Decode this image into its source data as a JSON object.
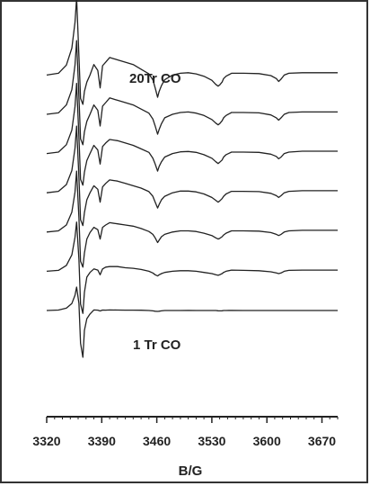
{
  "chart_data": {
    "type": "line",
    "xlabel": "B/G",
    "ylabel": "",
    "xlim": [
      3320,
      3690
    ],
    "xticks": [
      3320,
      3390,
      3460,
      3530,
      3600,
      3670
    ],
    "grid": false,
    "annotations": {
      "top": "20Tr CO",
      "bottom": "1 Tr CO"
    },
    "y_axis": "arbitrary offset stacked spectra",
    "line_color": "#222222",
    "spectra_order": "bottom to top: 1 Tr CO to 20Tr CO",
    "num_spectra": 7,
    "series": [
      {
        "x": [
          3320,
          3335,
          3345,
          3352,
          3356,
          3358,
          3361,
          3363,
          3366,
          3368,
          3371,
          3375,
          3380,
          3385,
          3388,
          3391,
          3395,
          3400,
          3410,
          3420,
          3430,
          3440,
          3450,
          3455,
          3458,
          3461,
          3463,
          3466,
          3470,
          3480,
          3490,
          3500,
          3510,
          3520,
          3530,
          3535,
          3538,
          3540,
          3543,
          3545,
          3548,
          3555,
          3570,
          3590,
          3605,
          3612,
          3615,
          3618,
          3622,
          3628,
          3645,
          3690
        ],
        "y": [
          0.0,
          0.004,
          0.02,
          0.06,
          0.13,
          0.2,
          0.06,
          -0.28,
          -0.4,
          -0.17,
          -0.07,
          -0.03,
          0.005,
          0.003,
          -0.004,
          0.004,
          0.003,
          0.005,
          0.004,
          0.003,
          0.003,
          0.002,
          0.0,
          -0.003,
          -0.006,
          -0.008,
          -0.006,
          -0.003,
          0.0,
          0.0,
          0.0,
          0.001,
          0.0,
          0.0,
          0.0,
          0.0,
          -0.002,
          -0.003,
          -0.002,
          0.0,
          0.0,
          0.001,
          0.0,
          0.0,
          0.0,
          0.0,
          0.0,
          0.0,
          0.0,
          0.0,
          0.0,
          0.0
        ]
      },
      {
        "x": [
          3320,
          3335,
          3345,
          3352,
          3356,
          3358,
          3361,
          3363,
          3366,
          3368,
          3371,
          3375,
          3380,
          3385,
          3388,
          3391,
          3395,
          3400,
          3410,
          3420,
          3430,
          3440,
          3450,
          3455,
          3458,
          3461,
          3463,
          3466,
          3470,
          3480,
          3490,
          3500,
          3510,
          3520,
          3530,
          3535,
          3538,
          3540,
          3543,
          3545,
          3548,
          3555,
          3570,
          3590,
          3605,
          3612,
          3615,
          3618,
          3622,
          3628,
          3645,
          3690
        ],
        "y": [
          0.0,
          0.008,
          0.05,
          0.14,
          0.29,
          0.42,
          0.1,
          -0.28,
          -0.36,
          -0.18,
          -0.05,
          -0.01,
          0.02,
          0.01,
          -0.03,
          0.02,
          0.035,
          0.04,
          0.04,
          0.03,
          0.025,
          0.015,
          0.0,
          -0.015,
          -0.03,
          -0.04,
          -0.03,
          -0.02,
          -0.01,
          0.0,
          0.005,
          0.005,
          0.0,
          -0.01,
          -0.02,
          -0.03,
          -0.035,
          -0.03,
          -0.02,
          -0.01,
          0.0,
          0.01,
          0.008,
          0.005,
          -0.005,
          -0.015,
          -0.02,
          -0.015,
          0.0,
          0.008,
          0.01,
          0.01
        ]
      },
      {
        "x": [
          3320,
          3335,
          3345,
          3352,
          3356,
          3358,
          3361,
          3363,
          3366,
          3368,
          3371,
          3375,
          3380,
          3385,
          3388,
          3391,
          3395,
          3400,
          3410,
          3420,
          3430,
          3440,
          3450,
          3455,
          3458,
          3461,
          3463,
          3466,
          3470,
          3480,
          3490,
          3500,
          3510,
          3520,
          3530,
          3535,
          3538,
          3540,
          3543,
          3545,
          3548,
          3555,
          3570,
          3590,
          3605,
          3612,
          3615,
          3618,
          3622,
          3628,
          3645,
          3690
        ],
        "y": [
          0.0,
          0.01,
          0.06,
          0.17,
          0.34,
          0.52,
          0.12,
          -0.25,
          -0.3,
          -0.18,
          -0.06,
          -0.005,
          0.04,
          0.02,
          -0.06,
          0.04,
          0.06,
          0.08,
          0.07,
          0.06,
          0.05,
          0.03,
          0.005,
          -0.02,
          -0.05,
          -0.09,
          -0.07,
          -0.04,
          -0.02,
          0.0,
          0.01,
          0.01,
          0.005,
          -0.01,
          -0.03,
          -0.05,
          -0.06,
          -0.055,
          -0.04,
          -0.025,
          -0.01,
          0.01,
          0.01,
          0.008,
          -0.005,
          -0.02,
          -0.03,
          -0.02,
          0.0,
          0.01,
          0.015,
          0.015
        ]
      },
      {
        "x": [
          3320,
          3335,
          3345,
          3352,
          3356,
          3358,
          3361,
          3363,
          3366,
          3368,
          3371,
          3375,
          3380,
          3385,
          3388,
          3391,
          3395,
          3400,
          3410,
          3420,
          3430,
          3440,
          3450,
          3455,
          3458,
          3461,
          3463,
          3466,
          3470,
          3480,
          3490,
          3500,
          3510,
          3520,
          3530,
          3535,
          3538,
          3540,
          3543,
          3545,
          3548,
          3555,
          3570,
          3590,
          3605,
          3612,
          3615,
          3618,
          3622,
          3628,
          3645,
          3690
        ],
        "y": [
          0.0,
          0.012,
          0.07,
          0.19,
          0.38,
          0.57,
          0.13,
          -0.23,
          -0.28,
          -0.17,
          -0.06,
          0.0,
          0.06,
          0.03,
          -0.08,
          0.05,
          0.08,
          0.11,
          0.1,
          0.08,
          0.06,
          0.04,
          0.01,
          -0.03,
          -0.08,
          -0.13,
          -0.1,
          -0.06,
          -0.03,
          0.0,
          0.015,
          0.015,
          0.008,
          -0.01,
          -0.04,
          -0.065,
          -0.08,
          -0.07,
          -0.05,
          -0.03,
          -0.01,
          0.012,
          0.012,
          0.01,
          -0.005,
          -0.025,
          -0.04,
          -0.025,
          0.0,
          0.012,
          0.018,
          0.018
        ]
      },
      {
        "x": [
          3320,
          3335,
          3345,
          3352,
          3356,
          3358,
          3361,
          3363,
          3366,
          3368,
          3371,
          3375,
          3380,
          3385,
          3388,
          3391,
          3395,
          3400,
          3410,
          3420,
          3430,
          3440,
          3450,
          3455,
          3458,
          3461,
          3463,
          3466,
          3470,
          3480,
          3490,
          3500,
          3510,
          3520,
          3530,
          3535,
          3538,
          3540,
          3543,
          3545,
          3548,
          3555,
          3570,
          3590,
          3605,
          3612,
          3615,
          3618,
          3622,
          3628,
          3645,
          3690
        ],
        "y": [
          0.0,
          0.012,
          0.075,
          0.2,
          0.4,
          0.6,
          0.14,
          -0.22,
          -0.27,
          -0.16,
          -0.06,
          0.0,
          0.07,
          0.03,
          -0.09,
          0.06,
          0.09,
          0.12,
          0.11,
          0.09,
          0.07,
          0.04,
          0.01,
          -0.04,
          -0.09,
          -0.15,
          -0.11,
          -0.07,
          -0.03,
          0.0,
          0.015,
          0.018,
          0.01,
          -0.01,
          -0.04,
          -0.07,
          -0.085,
          -0.075,
          -0.055,
          -0.03,
          -0.01,
          0.012,
          0.012,
          0.01,
          -0.005,
          -0.025,
          -0.045,
          -0.03,
          0.0,
          0.012,
          0.02,
          0.02
        ]
      },
      {
        "x": [
          3320,
          3335,
          3345,
          3352,
          3356,
          3358,
          3361,
          3363,
          3366,
          3368,
          3371,
          3375,
          3380,
          3385,
          3388,
          3391,
          3395,
          3400,
          3410,
          3420,
          3430,
          3440,
          3450,
          3455,
          3458,
          3461,
          3463,
          3466,
          3470,
          3480,
          3490,
          3500,
          3510,
          3520,
          3530,
          3535,
          3538,
          3540,
          3543,
          3545,
          3548,
          3555,
          3570,
          3590,
          3605,
          3612,
          3615,
          3618,
          3622,
          3628,
          3645,
          3690
        ],
        "y": [
          0.0,
          0.012,
          0.08,
          0.21,
          0.42,
          0.63,
          0.15,
          -0.21,
          -0.26,
          -0.15,
          -0.06,
          0.0,
          0.08,
          0.035,
          -0.1,
          0.07,
          0.1,
          0.14,
          0.12,
          0.1,
          0.08,
          0.045,
          0.01,
          -0.04,
          -0.1,
          -0.17,
          -0.13,
          -0.08,
          -0.03,
          0.0,
          0.015,
          0.02,
          0.01,
          -0.01,
          -0.045,
          -0.075,
          -0.09,
          -0.08,
          -0.055,
          -0.03,
          -0.01,
          0.015,
          0.015,
          0.012,
          -0.005,
          -0.03,
          -0.05,
          -0.03,
          0.0,
          0.015,
          0.02,
          0.02
        ]
      },
      {
        "x": [
          3320,
          3335,
          3345,
          3352,
          3356,
          3358,
          3361,
          3363,
          3366,
          3368,
          3371,
          3375,
          3380,
          3385,
          3388,
          3391,
          3395,
          3400,
          3410,
          3420,
          3430,
          3440,
          3450,
          3455,
          3458,
          3461,
          3463,
          3466,
          3470,
          3480,
          3490,
          3500,
          3510,
          3520,
          3530,
          3535,
          3538,
          3540,
          3543,
          3545,
          3548,
          3555,
          3570,
          3590,
          3605,
          3612,
          3615,
          3618,
          3622,
          3628,
          3645,
          3690
        ],
        "y": [
          0.0,
          0.015,
          0.085,
          0.23,
          0.45,
          0.66,
          0.16,
          -0.2,
          -0.25,
          -0.14,
          -0.06,
          0.0,
          0.09,
          0.04,
          -0.11,
          0.08,
          0.11,
          0.15,
          0.13,
          0.11,
          0.09,
          0.05,
          0.01,
          -0.04,
          -0.11,
          -0.19,
          -0.14,
          -0.09,
          -0.04,
          0.0,
          0.015,
          0.02,
          0.01,
          -0.01,
          -0.045,
          -0.08,
          -0.095,
          -0.085,
          -0.06,
          -0.03,
          -0.01,
          0.015,
          0.015,
          0.012,
          -0.005,
          -0.03,
          -0.055,
          -0.035,
          0.0,
          0.015,
          0.02,
          0.02
        ]
      }
    ]
  }
}
